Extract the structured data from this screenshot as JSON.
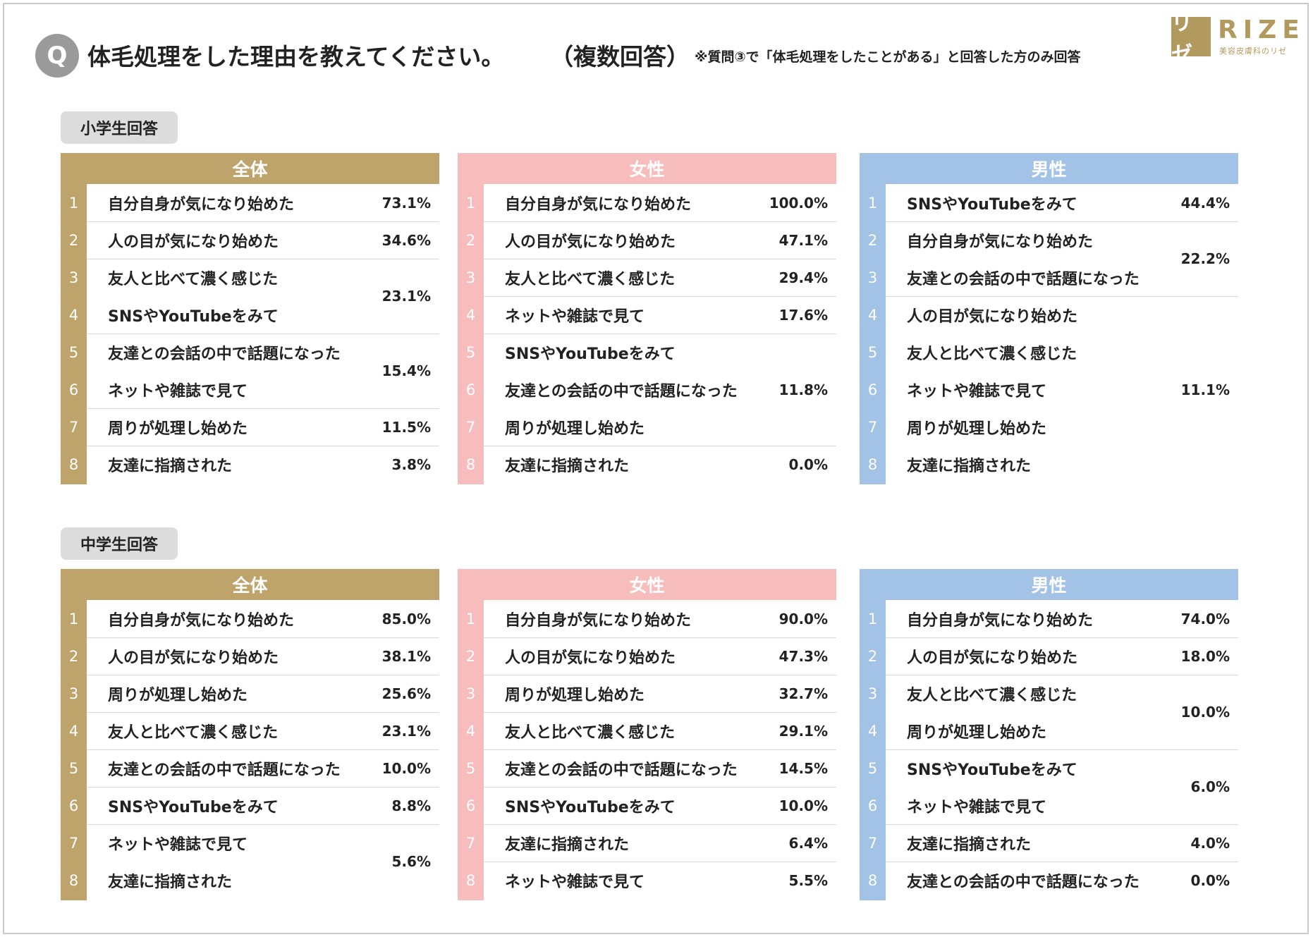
{
  "header": {
    "q_mark": "Q",
    "title": "体毛処理をした理由を教えてください。",
    "subtitle": "（複数回答）",
    "note": "※質問③で「体毛処理をしたことがある」と回答した方のみ回答"
  },
  "logo": {
    "mark": "リゼ",
    "word": "RIZE",
    "tagline": "美容皮膚科のリゼ"
  },
  "colors": {
    "all": "#bea36b",
    "female": "#f7bdbd",
    "male": "#a2c2e6",
    "label_bg": "#dcdcdc"
  },
  "sections": [
    {
      "label": "小学生回答",
      "panels": [
        {
          "title": "全体",
          "groups": [
            {
              "items": [
                {
                  "rank": "1",
                  "text": "自分自身が気になり始めた"
                }
              ],
              "value": "73.1%"
            },
            {
              "items": [
                {
                  "rank": "2",
                  "text": "人の目が気になり始めた"
                }
              ],
              "value": "34.6%"
            },
            {
              "items": [
                {
                  "rank": "3",
                  "text": "友人と比べて濃く感じた"
                },
                {
                  "rank": "4",
                  "text": "SNSやYouTubeをみて"
                }
              ],
              "value": "23.1%"
            },
            {
              "items": [
                {
                  "rank": "5",
                  "text": "友達との会話の中で話題になった"
                },
                {
                  "rank": "6",
                  "text": "ネットや雑誌で見て"
                }
              ],
              "value": "15.4%"
            },
            {
              "items": [
                {
                  "rank": "7",
                  "text": "周りが処理し始めた"
                }
              ],
              "value": "11.5%"
            },
            {
              "items": [
                {
                  "rank": "8",
                  "text": "友達に指摘された"
                }
              ],
              "value": "3.8%"
            }
          ]
        },
        {
          "title": "女性",
          "groups": [
            {
              "items": [
                {
                  "rank": "1",
                  "text": "自分自身が気になり始めた"
                }
              ],
              "value": "100.0%"
            },
            {
              "items": [
                {
                  "rank": "2",
                  "text": "人の目が気になり始めた"
                }
              ],
              "value": "47.1%"
            },
            {
              "items": [
                {
                  "rank": "3",
                  "text": "友人と比べて濃く感じた"
                }
              ],
              "value": "29.4%"
            },
            {
              "items": [
                {
                  "rank": "4",
                  "text": "ネットや雑誌で見て"
                }
              ],
              "value": "17.6%"
            },
            {
              "items": [
                {
                  "rank": "5",
                  "text": "SNSやYouTubeをみて"
                },
                {
                  "rank": "6",
                  "text": "友達との会話の中で話題になった"
                },
                {
                  "rank": "7",
                  "text": "周りが処理し始めた"
                }
              ],
              "value": "11.8%"
            },
            {
              "items": [
                {
                  "rank": "8",
                  "text": "友達に指摘された"
                }
              ],
              "value": "0.0%"
            }
          ]
        },
        {
          "title": "男性",
          "groups": [
            {
              "items": [
                {
                  "rank": "1",
                  "text": "SNSやYouTubeをみて"
                }
              ],
              "value": "44.4%"
            },
            {
              "items": [
                {
                  "rank": "2",
                  "text": "自分自身が気になり始めた"
                },
                {
                  "rank": "3",
                  "text": "友達との会話の中で話題になった"
                }
              ],
              "value": "22.2%"
            },
            {
              "items": [
                {
                  "rank": "4",
                  "text": "人の目が気になり始めた"
                },
                {
                  "rank": "5",
                  "text": "友人と比べて濃く感じた"
                },
                {
                  "rank": "6",
                  "text": "ネットや雑誌で見て"
                },
                {
                  "rank": "7",
                  "text": "周りが処理し始めた"
                },
                {
                  "rank": "8",
                  "text": "友達に指摘された"
                }
              ],
              "value": "11.1%"
            }
          ]
        }
      ]
    },
    {
      "label": "中学生回答",
      "panels": [
        {
          "title": "全体",
          "groups": [
            {
              "items": [
                {
                  "rank": "1",
                  "text": "自分自身が気になり始めた"
                }
              ],
              "value": "85.0%"
            },
            {
              "items": [
                {
                  "rank": "2",
                  "text": "人の目が気になり始めた"
                }
              ],
              "value": "38.1%"
            },
            {
              "items": [
                {
                  "rank": "3",
                  "text": "周りが処理し始めた"
                }
              ],
              "value": "25.6%"
            },
            {
              "items": [
                {
                  "rank": "4",
                  "text": "友人と比べて濃く感じた"
                }
              ],
              "value": "23.1%"
            },
            {
              "items": [
                {
                  "rank": "5",
                  "text": "友達との会話の中で話題になった"
                }
              ],
              "value": "10.0%"
            },
            {
              "items": [
                {
                  "rank": "6",
                  "text": "SNSやYouTubeをみて"
                }
              ],
              "value": "8.8%"
            },
            {
              "items": [
                {
                  "rank": "7",
                  "text": "ネットや雑誌で見て"
                },
                {
                  "rank": "8",
                  "text": "友達に指摘された"
                }
              ],
              "value": "5.6%"
            }
          ]
        },
        {
          "title": "女性",
          "groups": [
            {
              "items": [
                {
                  "rank": "1",
                  "text": "自分自身が気になり始めた"
                }
              ],
              "value": "90.0%"
            },
            {
              "items": [
                {
                  "rank": "2",
                  "text": "人の目が気になり始めた"
                }
              ],
              "value": "47.3%"
            },
            {
              "items": [
                {
                  "rank": "3",
                  "text": "周りが処理し始めた"
                }
              ],
              "value": "32.7%"
            },
            {
              "items": [
                {
                  "rank": "4",
                  "text": "友人と比べて濃く感じた"
                }
              ],
              "value": "29.1%"
            },
            {
              "items": [
                {
                  "rank": "5",
                  "text": "友達との会話の中で話題になった"
                }
              ],
              "value": "14.5%"
            },
            {
              "items": [
                {
                  "rank": "6",
                  "text": "SNSやYouTubeをみて"
                }
              ],
              "value": "10.0%"
            },
            {
              "items": [
                {
                  "rank": "7",
                  "text": "友達に指摘された"
                }
              ],
              "value": "6.4%"
            },
            {
              "items": [
                {
                  "rank": "8",
                  "text": "ネットや雑誌で見て"
                }
              ],
              "value": "5.5%"
            }
          ]
        },
        {
          "title": "男性",
          "groups": [
            {
              "items": [
                {
                  "rank": "1",
                  "text": "自分自身が気になり始めた"
                }
              ],
              "value": "74.0%"
            },
            {
              "items": [
                {
                  "rank": "2",
                  "text": "人の目が気になり始めた"
                }
              ],
              "value": "18.0%"
            },
            {
              "items": [
                {
                  "rank": "3",
                  "text": "友人と比べて濃く感じた"
                },
                {
                  "rank": "4",
                  "text": "周りが処理し始めた"
                }
              ],
              "value": "10.0%"
            },
            {
              "items": [
                {
                  "rank": "5",
                  "text": "SNSやYouTubeをみて"
                },
                {
                  "rank": "6",
                  "text": "ネットや雑誌で見て"
                }
              ],
              "value": "6.0%"
            },
            {
              "items": [
                {
                  "rank": "7",
                  "text": "友達に指摘された"
                }
              ],
              "value": "4.0%"
            },
            {
              "items": [
                {
                  "rank": "8",
                  "text": "友達との会話の中で話題になった"
                }
              ],
              "value": "0.0%"
            }
          ]
        }
      ]
    }
  ]
}
